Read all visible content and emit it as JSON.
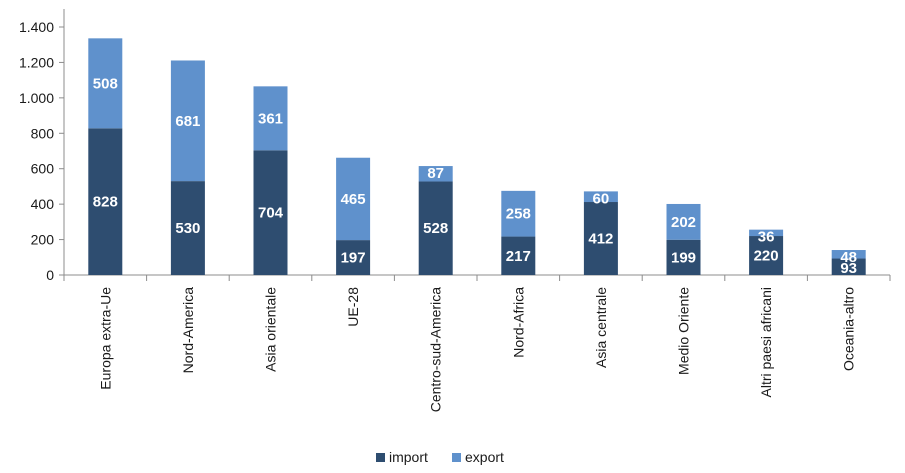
{
  "chart_data": {
    "type": "bar",
    "stacked": true,
    "categories": [
      "Europa extra-Ue",
      "Nord-America",
      "Asia orientale",
      "UE-28",
      "Centro-sud-America",
      "Nord-Africa",
      "Asia centrale",
      "Medio Oriente",
      "Altri paesi africani",
      "Oceania-altro"
    ],
    "series": [
      {
        "name": "import",
        "color": "#2e4d70",
        "values": [
          828,
          530,
          704,
          197,
          528,
          217,
          412,
          199,
          220,
          93
        ]
      },
      {
        "name": "export",
        "color": "#5f91cc",
        "values": [
          508,
          681,
          361,
          465,
          87,
          258,
          60,
          202,
          36,
          48
        ]
      }
    ],
    "ylim": [
      0,
      1400
    ],
    "yticks": [
      0,
      200,
      400,
      600,
      800,
      1000,
      1200,
      1400
    ],
    "ytick_labels": [
      "0",
      "200",
      "400",
      "600",
      "800",
      "1.000",
      "1.200",
      "1.400"
    ],
    "grid": false,
    "legend_position": "bottom-center",
    "title": "",
    "xlabel": "",
    "ylabel": ""
  }
}
